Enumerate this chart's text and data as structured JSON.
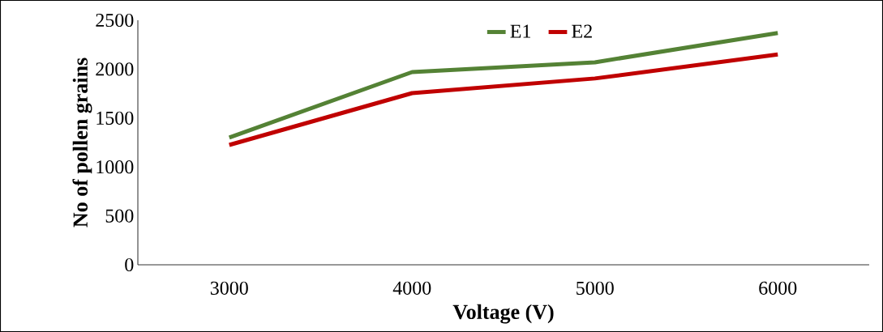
{
  "chart_data": {
    "type": "line",
    "xlabel": "Voltage (V)",
    "ylabel": "No of pollen grains",
    "categories": [
      "3000",
      "4000",
      "5000",
      "6000"
    ],
    "series": [
      {
        "name": "E1",
        "color": "#548235",
        "values": [
          1300,
          1970,
          2070,
          2370
        ]
      },
      {
        "name": "E2",
        "color": "#c00000",
        "values": [
          1225,
          1755,
          1905,
          2150
        ]
      }
    ],
    "ylim": [
      0,
      2500
    ],
    "yticks": [
      0,
      500,
      1000,
      1500,
      2000,
      2500
    ],
    "legend": "top",
    "grid": false,
    "marker": "none",
    "line_style": "solid"
  }
}
